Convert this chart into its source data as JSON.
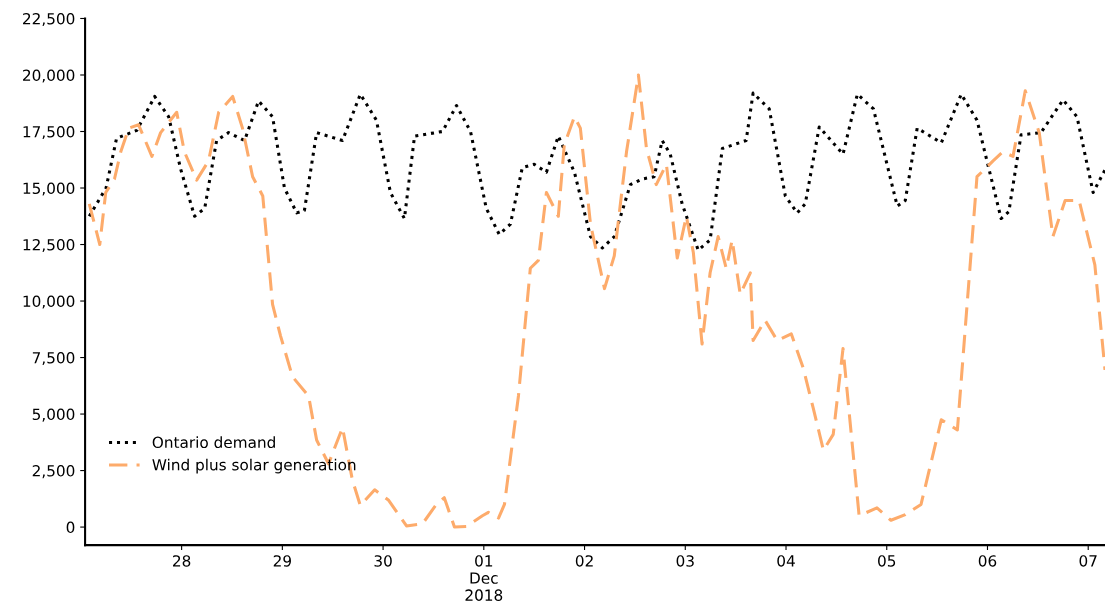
{
  "chart_data": {
    "type": "line",
    "xlim": [
      "2018-11-27T01:00",
      "2018-12-07T04:00"
    ],
    "xticks": [
      {
        "value": "2018-11-28",
        "label": "28"
      },
      {
        "value": "2018-11-29",
        "label": "29"
      },
      {
        "value": "2018-11-30",
        "label": "30"
      },
      {
        "value": "2018-12-01",
        "label": "01\nDec\n2018"
      },
      {
        "value": "2018-12-02",
        "label": "02"
      },
      {
        "value": "2018-12-03",
        "label": "03"
      },
      {
        "value": "2018-12-04",
        "label": "04"
      },
      {
        "value": "2018-12-05",
        "label": "05"
      },
      {
        "value": "2018-12-06",
        "label": "06"
      },
      {
        "value": "2018-12-07",
        "label": "07"
      }
    ],
    "ylim": [
      -800,
      22500
    ],
    "yticks": [
      {
        "value": 0,
        "label": "0"
      },
      {
        "value": 2500,
        "label": "2,500"
      },
      {
        "value": 5000,
        "label": "5,000"
      },
      {
        "value": 7500,
        "label": "7,500"
      },
      {
        "value": 10000,
        "label": "10,000"
      },
      {
        "value": 12500,
        "label": "12,500"
      },
      {
        "value": 15000,
        "label": "15,000"
      },
      {
        "value": 17500,
        "label": "17,500"
      },
      {
        "value": 20000,
        "label": "20,000"
      },
      {
        "value": 22500,
        "label": "22,500"
      }
    ],
    "grid": false,
    "legend": "bottom left",
    "series": [
      {
        "name": "Ontario demand",
        "color": "#000000",
        "line_style": "dotted",
        "x": [
          "2018-11-27T02:00",
          "2018-11-27T06:00",
          "2018-11-27T08:30",
          "2018-11-27T13:20",
          "2018-11-27T17:35",
          "2018-11-27T20:55",
          "2018-11-27T23:45",
          "2018-11-28T03:05",
          "2018-11-28T05:30",
          "2018-11-28T08:20",
          "2018-11-28T11:10",
          "2018-11-28T15:00",
          "2018-11-28T18:20",
          "2018-11-28T21:40",
          "2018-11-29T00:30",
          "2018-11-29T03:25",
          "2018-11-29T05:15",
          "2018-11-29T08:10",
          "2018-11-29T14:20",
          "2018-11-29T18:35",
          "2018-11-29T22:25",
          "2018-11-30T01:45",
          "2018-11-30T05:05",
          "2018-11-30T07:30",
          "2018-11-30T14:10",
          "2018-11-30T17:30",
          "2018-11-30T20:50",
          "2018-12-01T00:35",
          "2018-12-01T03:40",
          "2018-12-01T06:20",
          "2018-12-01T09:10",
          "2018-12-01T12:00",
          "2018-12-01T14:55",
          "2018-12-01T17:45",
          "2018-12-01T21:35",
          "2018-12-02T01:25",
          "2018-12-02T04:15",
          "2018-12-02T07:05",
          "2018-12-02T10:55",
          "2018-12-02T13:45",
          "2018-12-02T16:35",
          "2018-12-02T18:30",
          "2018-12-02T20:25",
          "2018-12-02T23:15",
          "2018-12-03T03:05",
          "2018-12-03T05:55",
          "2018-12-03T08:50",
          "2018-12-03T14:30",
          "2018-12-03T16:10",
          "2018-12-03T20:00",
          "2018-12-03T23:50",
          "2018-12-04T02:40",
          "2018-12-04T04:35",
          "2018-12-04T07:55",
          "2018-12-04T13:35",
          "2018-12-04T17:00",
          "2018-12-04T20:50",
          "2018-12-05T02:30",
          "2018-12-05T04:25",
          "2018-12-05T07:15",
          "2018-12-05T13:00",
          "2018-12-05T17:45",
          "2018-12-05T21:30",
          "2018-12-06T03:15",
          "2018-12-06T05:05",
          "2018-12-06T08:00",
          "2018-12-06T12:45",
          "2018-12-06T18:00",
          "2018-12-06T21:20",
          "2018-12-07T01:10",
          "2018-12-07T04:00"
        ],
        "values": [
          13750,
          15000,
          17200,
          17550,
          19050,
          18150,
          15850,
          13750,
          14100,
          17100,
          17450,
          17100,
          18850,
          18150,
          15000,
          13900,
          14000,
          17450,
          17100,
          19150,
          18000,
          14800,
          13650,
          17300,
          17500,
          18650,
          17500,
          14100,
          12950,
          13400,
          15900,
          16050,
          15700,
          17300,
          15700,
          12850,
          12350,
          12850,
          15150,
          15400,
          15500,
          17100,
          16500,
          14300,
          12250,
          12700,
          16750,
          17100,
          19200,
          18500,
          14650,
          13900,
          14300,
          17700,
          16500,
          19150,
          18500,
          14200,
          14450,
          17650,
          17000,
          19150,
          18000,
          13650,
          13950,
          17350,
          17450,
          18900,
          18150,
          14800,
          15800
        ]
      },
      {
        "name": "Wind plus solar generation",
        "color": "#fdab6b",
        "line_style": "dashed",
        "x": [
          "2018-11-27T02:00",
          "2018-11-27T04:30",
          "2018-11-27T05:55",
          "2018-11-27T08:00",
          "2018-11-27T09:30",
          "2018-11-27T11:25",
          "2018-11-27T13:45",
          "2018-11-27T16:55",
          "2018-11-27T19:00",
          "2018-11-27T22:50",
          "2018-11-28T00:40",
          "2018-11-28T03:35",
          "2018-11-28T06:25",
          "2018-11-28T08:50",
          "2018-11-28T12:10",
          "2018-11-28T14:30",
          "2018-11-28T16:55",
          "2018-11-28T19:20",
          "2018-11-28T21:40",
          "2018-11-28T23:35",
          "2018-11-29T02:25",
          "2018-11-29T06:15",
          "2018-11-29T08:10",
          "2018-11-29T11:00",
          "2018-11-29T14:20",
          "2018-11-29T16:40",
          "2018-11-29T18:35",
          "2018-11-29T22:00",
          "2018-11-30T01:15",
          "2018-11-30T05:35",
          "2018-11-30T09:25",
          "2018-11-30T12:40",
          "2018-11-30T14:35",
          "2018-11-30T17:00",
          "2018-11-30T19:50",
          "2018-11-30T23:40",
          "2018-12-01T01:05",
          "2018-12-01T03:30",
          "2018-12-01T04:55",
          "2018-12-01T08:15",
          "2018-12-01T11:05",
          "2018-12-01T13:00",
          "2018-12-01T14:55",
          "2018-12-01T17:45",
          "2018-12-01T19:10",
          "2018-12-01T21:35",
          "2018-12-01T23:00",
          "2018-12-02T01:25",
          "2018-12-02T04:45",
          "2018-12-02T07:05",
          "2018-12-02T10:00",
          "2018-12-02T12:50",
          "2018-12-02T14:45",
          "2018-12-02T17:05",
          "2018-12-02T19:30",
          "2018-12-02T22:05",
          "2018-12-03T00:15",
          "2018-12-03T01:55",
          "2018-12-03T04:00",
          "2018-12-03T05:55",
          "2018-12-03T07:50",
          "2018-12-03T09:45",
          "2018-12-03T11:10",
          "2018-12-03T13:05",
          "2018-12-03T15:30",
          "2018-12-03T16:10",
          "2018-12-03T19:00",
          "2018-12-03T21:55",
          "2018-12-04T01:15",
          "2018-12-04T04:05",
          "2018-12-04T06:30",
          "2018-12-04T08:55",
          "2018-12-04T11:15",
          "2018-12-04T13:35",
          "2018-12-04T17:25",
          "2018-12-04T21:40",
          "2018-12-05T01:00",
          "2018-12-05T04:25",
          "2018-12-05T08:10",
          "2018-12-05T13:00",
          "2018-12-05T16:50",
          "2018-12-05T21:30",
          "2018-12-06T01:20",
          "2018-12-06T03:40",
          "2018-12-06T06:05",
          "2018-12-06T09:00",
          "2018-12-06T12:20",
          "2018-12-06T15:35",
          "2018-12-06T18:30",
          "2018-12-06T21:50",
          "2018-12-07T01:35",
          "2018-12-07T04:00"
        ],
        "values": [
          14300,
          12500,
          14800,
          15400,
          16600,
          17650,
          17800,
          16400,
          17450,
          18350,
          16600,
          15350,
          16200,
          18350,
          19050,
          17650,
          15500,
          14650,
          9850,
          8450,
          6650,
          5800,
          3850,
          2800,
          4400,
          2100,
          950,
          1650,
          1200,
          50,
          150,
          1000,
          1300,
          0,
          30,
          500,
          650,
          400,
          1000,
          5800,
          11450,
          11800,
          14800,
          13750,
          16900,
          18150,
          17650,
          13400,
          10550,
          12000,
          16600,
          20000,
          16750,
          15150,
          16050,
          11900,
          13750,
          12150,
          8100,
          11250,
          12850,
          11450,
          12700,
          10300,
          11250,
          8250,
          9150,
          8250,
          8550,
          7050,
          5250,
          3400,
          4100,
          7900,
          500,
          850,
          300,
          550,
          1000,
          4750,
          4300,
          15500,
          16200,
          16600,
          16400,
          19300,
          17450,
          12850,
          14450,
          14450,
          11600,
          6950
        ]
      }
    ]
  }
}
